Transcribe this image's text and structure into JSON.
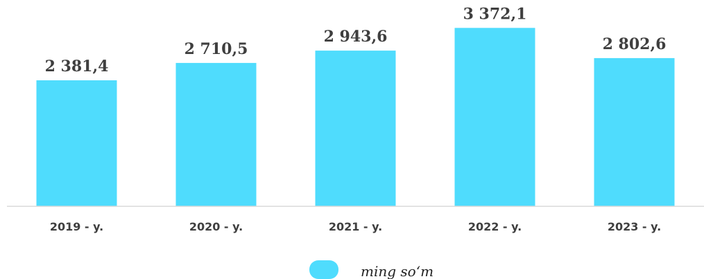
{
  "chart_data": {
    "type": "bar",
    "categories": [
      "2019 - y.",
      "2020 - y.",
      "2021 - y.",
      "2022 - y.",
      "2023 - y."
    ],
    "series": [
      {
        "name": "ming so‘m",
        "values": [
          2381.4,
          2710.5,
          2943.6,
          3372.1,
          2802.6
        ],
        "labels": [
          "2 381,4",
          "2 710,5",
          "2 943,6",
          "3 372,1",
          "2 802,6"
        ],
        "color": "#4fdcfd"
      }
    ],
    "ylim": [
      0,
      3900
    ],
    "grid": false,
    "legend_position": "bottom-center",
    "axis_color": "#d9d9d9",
    "label_color": "#3f3f3f"
  }
}
